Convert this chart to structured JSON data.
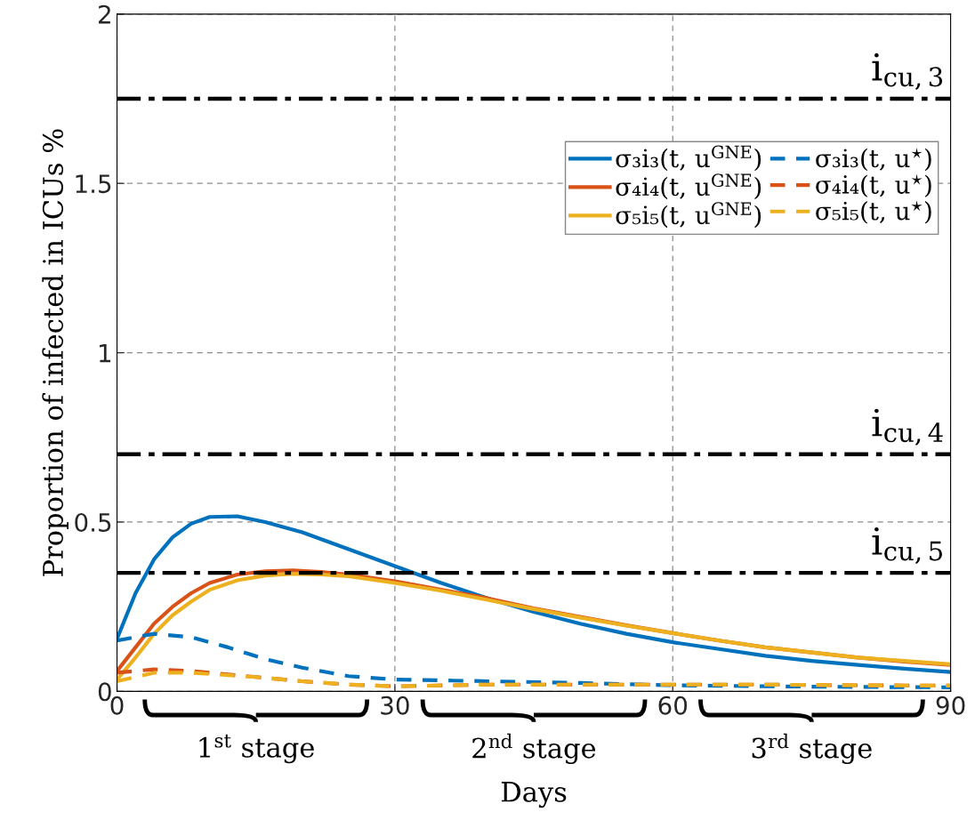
{
  "chart_data": {
    "type": "line",
    "xlabel": "Days",
    "ylabel": "Proportion of infected in ICUs %",
    "xlim": [
      0,
      90
    ],
    "ylim": [
      0,
      2
    ],
    "xticks": [
      0,
      30,
      60,
      90
    ],
    "yticks": [
      0,
      0.5,
      1,
      1.5,
      2
    ],
    "grid": true,
    "legend": "top right",
    "marker": "none",
    "series": [
      {
        "name": "σ₃i₃(t, u$^{GNE}$)",
        "color": "#0072bd",
        "line_style": "solid",
        "x": [
          0,
          2,
          4,
          6,
          8,
          10,
          13,
          16,
          20,
          25,
          30,
          35,
          40,
          45,
          50,
          55,
          60,
          65,
          70,
          75,
          80,
          85,
          90
        ],
        "values": [
          0.155,
          0.29,
          0.39,
          0.455,
          0.495,
          0.515,
          0.517,
          0.5,
          0.47,
          0.42,
          0.37,
          0.32,
          0.275,
          0.235,
          0.2,
          0.17,
          0.145,
          0.125,
          0.105,
          0.09,
          0.078,
          0.067,
          0.057
        ]
      },
      {
        "name": "σ₄i₄(t, u$^{GNE}$)",
        "color": "#d95319",
        "line_style": "solid",
        "x": [
          0,
          2,
          4,
          6,
          8,
          10,
          13,
          16,
          19,
          22,
          25,
          30,
          35,
          40,
          45,
          50,
          55,
          60,
          65,
          70,
          75,
          80,
          85,
          90
        ],
        "values": [
          0.06,
          0.13,
          0.2,
          0.25,
          0.29,
          0.32,
          0.345,
          0.355,
          0.357,
          0.353,
          0.345,
          0.325,
          0.3,
          0.275,
          0.245,
          0.22,
          0.195,
          0.172,
          0.15,
          0.13,
          0.115,
          0.1,
          0.088,
          0.078
        ]
      },
      {
        "name": "σ₅i₅(t, u$^{GNE}$)",
        "color": "#edb120",
        "line_style": "solid",
        "x": [
          0,
          2,
          4,
          6,
          8,
          10,
          13,
          16,
          19,
          22,
          25,
          30,
          35,
          40,
          45,
          50,
          55,
          60,
          65,
          70,
          75,
          80,
          85,
          90
        ],
        "values": [
          0.035,
          0.1,
          0.17,
          0.225,
          0.265,
          0.3,
          0.328,
          0.342,
          0.347,
          0.345,
          0.34,
          0.32,
          0.297,
          0.27,
          0.243,
          0.218,
          0.194,
          0.172,
          0.15,
          0.13,
          0.115,
          0.1,
          0.09,
          0.08
        ]
      },
      {
        "name": "σ₃i₃(t, u$^{⋆}$)",
        "color": "#0072bd",
        "line_style": "dashed",
        "x": [
          0,
          4,
          8,
          12,
          16,
          20,
          25,
          30,
          40,
          50,
          60,
          70,
          80,
          90
        ],
        "values": [
          0.15,
          0.17,
          0.16,
          0.13,
          0.095,
          0.07,
          0.045,
          0.035,
          0.03,
          0.025,
          0.018,
          0.015,
          0.013,
          0.012
        ]
      },
      {
        "name": "σ₄i₄(t, u$^{⋆}$)",
        "color": "#d95319",
        "line_style": "dashed",
        "x": [
          0,
          4,
          8,
          12,
          16,
          20,
          25,
          30,
          40,
          50,
          60,
          70,
          80,
          90
        ],
        "values": [
          0.055,
          0.065,
          0.06,
          0.05,
          0.04,
          0.03,
          0.02,
          0.015,
          0.02,
          0.02,
          0.02,
          0.02,
          0.018,
          0.017
        ]
      },
      {
        "name": "σ₅i₅(t, u$^{⋆}$)",
        "color": "#edb120",
        "line_style": "dashed",
        "x": [
          0,
          4,
          8,
          12,
          16,
          20,
          25,
          30,
          40,
          50,
          60,
          70,
          80,
          90
        ],
        "values": [
          0.03,
          0.055,
          0.055,
          0.048,
          0.04,
          0.03,
          0.02,
          0.015,
          0.02,
          0.02,
          0.02,
          0.02,
          0.018,
          0.017
        ]
      }
    ],
    "ref_lines": [
      {
        "axis": "y",
        "value": 1.75,
        "label": "i$_{cu,3}$",
        "color": "#000000",
        "line_style": "dashdot"
      },
      {
        "axis": "y",
        "value": 0.7,
        "label": "i$_{cu,4}$",
        "color": "#000000",
        "line_style": "dashdot"
      },
      {
        "axis": "y",
        "value": 0.35,
        "label": "i$_{cu,5}$",
        "color": "#000000",
        "line_style": "dashdot"
      }
    ],
    "annotations": [
      "1$^{st}$ stage",
      "2$^{nd}$ stage",
      "3$^{rd}$ stage"
    ]
  }
}
